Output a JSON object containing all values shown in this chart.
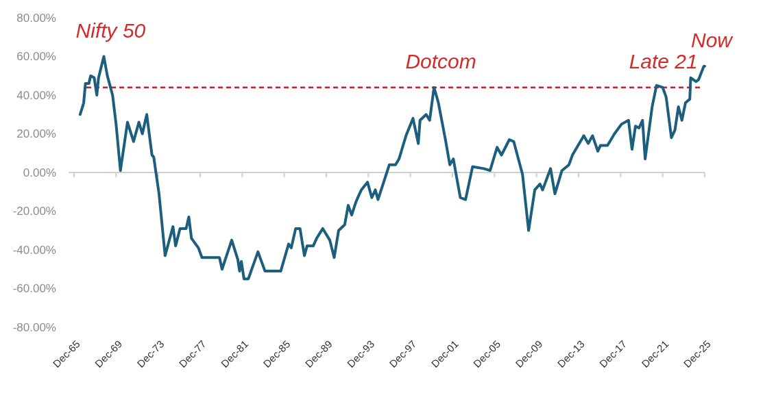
{
  "chart_data": {
    "type": "line",
    "x": [
      "1966-07",
      "1966-11",
      "1967-01",
      "1967-05",
      "1967-07",
      "1967-11",
      "1968-02",
      "1968-04",
      "1968-10",
      "1969-02",
      "1969-08",
      "1969-12",
      "1970-05",
      "1971-01",
      "1971-08",
      "1972-02",
      "1972-06",
      "1972-11",
      "1973-05",
      "1973-07",
      "1974-01",
      "1974-08",
      "1975-05",
      "1975-08",
      "1976-01",
      "1976-08",
      "1976-11",
      "1977-02",
      "1977-10",
      "1978-02",
      "1979-10",
      "1980-01",
      "1980-12",
      "1981-07",
      "1981-09",
      "1981-11",
      "1982-02",
      "1982-07",
      "1983-06",
      "1984-02",
      "1985-08",
      "1986-05",
      "1986-08",
      "1987-01",
      "1987-06",
      "1987-11",
      "1988-02",
      "1988-09",
      "1989-01",
      "1989-08",
      "1990-04",
      "1990-09",
      "1991-02",
      "1991-09",
      "1992-01",
      "1992-05",
      "1992-10",
      "1993-04",
      "1993-11",
      "1994-04",
      "1994-08",
      "1994-11",
      "1995-12",
      "1996-07",
      "1996-11",
      "1997-07",
      "1998-03",
      "1998-09",
      "1998-11",
      "1999-06",
      "1999-10",
      "2000-03",
      "2000-08",
      "2001-04",
      "2001-09",
      "2002-01",
      "2002-09",
      "2003-03",
      "2003-11",
      "2004-12",
      "2005-07",
      "2006-03",
      "2006-08",
      "2007-05",
      "2007-10",
      "2008-08",
      "2009-03",
      "2009-10",
      "2010-04",
      "2010-07",
      "2011-04",
      "2011-09",
      "2012-05",
      "2013-01",
      "2013-05",
      "2014-06",
      "2014-11",
      "2015-04",
      "2015-10",
      "2016-01",
      "2016-09",
      "2017-05",
      "2018-01",
      "2018-09",
      "2019-01",
      "2019-05",
      "2019-09",
      "2020-01",
      "2020-04",
      "2020-12",
      "2021-05",
      "2021-12",
      "2022-04",
      "2022-10",
      "2023-02",
      "2023-06",
      "2023-10",
      "2024-02",
      "2024-07",
      "2024-08",
      "2025-02",
      "2025-05",
      "2025-11",
      "2025-12"
    ],
    "series": [
      {
        "color": "#1b5e7e",
        "values": [
          30,
          36,
          46,
          46,
          50,
          49,
          40,
          49,
          60,
          50,
          40,
          25,
          1,
          26,
          16,
          26,
          20,
          30,
          9,
          8,
          -11,
          -43,
          -28,
          -38,
          -29,
          -29,
          -23,
          -34,
          -39,
          -44,
          -44,
          -50,
          -35,
          -45,
          -51,
          -46,
          -55,
          -55,
          -41,
          -51,
          -51,
          -37,
          -39,
          -29,
          -29,
          -43,
          -38,
          -38,
          -34,
          -29,
          -35,
          -44,
          -30,
          -27,
          -17,
          -22,
          -15,
          -9,
          -5,
          -13,
          -9,
          -14,
          4,
          4,
          7,
          19,
          28,
          15,
          27,
          30,
          27,
          44,
          36,
          17,
          4,
          7,
          -13,
          -14,
          3,
          2,
          1,
          13,
          9,
          17,
          16,
          -1,
          -30,
          -9,
          -6,
          -9,
          2,
          -11,
          1,
          4,
          9,
          19,
          15,
          19,
          11,
          14,
          14,
          20,
          25,
          27,
          12,
          24,
          23,
          27,
          7,
          34,
          45,
          44,
          39,
          18,
          22,
          34,
          27,
          36,
          38,
          49,
          47,
          48,
          55,
          55
        ]
      }
    ],
    "xlim": [
      "1965-12",
      "2025-12"
    ],
    "xticks": [
      {
        "value": "1965-12",
        "label": "Dec-65"
      },
      {
        "value": "1969-12",
        "label": "Dec-69"
      },
      {
        "value": "1973-12",
        "label": "Dec-73"
      },
      {
        "value": "1977-12",
        "label": "Dec-77"
      },
      {
        "value": "1981-12",
        "label": "Dec-81"
      },
      {
        "value": "1985-12",
        "label": "Dec-85"
      },
      {
        "value": "1989-12",
        "label": "Dec-89"
      },
      {
        "value": "1993-12",
        "label": "Dec-93"
      },
      {
        "value": "1997-12",
        "label": "Dec-97"
      },
      {
        "value": "2001-12",
        "label": "Dec-01"
      },
      {
        "value": "2005-12",
        "label": "Dec-05"
      },
      {
        "value": "2009-12",
        "label": "Dec-09"
      },
      {
        "value": "2013-12",
        "label": "Dec-13"
      },
      {
        "value": "2017-12",
        "label": "Dec-17"
      },
      {
        "value": "2021-12",
        "label": "Dec-21"
      },
      {
        "value": "2025-12",
        "label": "Dec-25"
      }
    ],
    "ylim": [
      -80,
      80
    ],
    "yticks": [
      {
        "value": -80,
        "label": "-80.00%"
      },
      {
        "value": -60,
        "label": "-60.00%"
      },
      {
        "value": -40,
        "label": "-40.00%"
      },
      {
        "value": -20,
        "label": "-20.00%"
      },
      {
        "value": 0,
        "label": "0.00%"
      },
      {
        "value": 20,
        "label": "20.00%"
      },
      {
        "value": 40,
        "label": "40.00%"
      },
      {
        "value": 60,
        "label": "60.00%"
      },
      {
        "value": 80,
        "label": "80.00%"
      }
    ],
    "ref_lines": [
      {
        "axis": "y",
        "value": 44,
        "color": "#c0272d",
        "line_style": "dashed"
      }
    ],
    "annotations": [
      {
        "text": "Nifty 50",
        "x": "1968-10",
        "y": 60
      },
      {
        "text": "Dotcom",
        "x": "2000-03",
        "y": 44
      },
      {
        "text": "Late 21",
        "x": "2021-05",
        "y": 44
      },
      {
        "text": "Now",
        "x": "2025-12",
        "y": 55
      }
    ],
    "marker": "none",
    "line_style": "solid"
  }
}
